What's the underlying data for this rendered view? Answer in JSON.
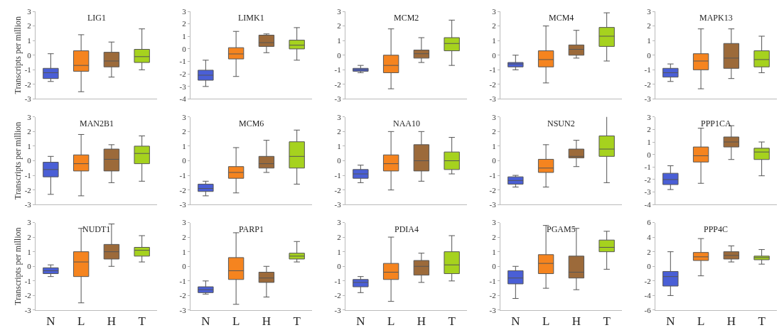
{
  "chart_data": [
    {
      "type": "box",
      "title": "LIG1",
      "ylabel": "Transcripts per million",
      "categories": [
        null,
        null,
        null,
        null
      ],
      "colors": [
        "#4a5fd6",
        "#f5841f",
        "#9c6a3a",
        "#a6d21e"
      ],
      "ylim": [
        -3,
        3
      ],
      "yticks": [
        -3,
        -2,
        -1,
        0,
        1,
        2,
        3
      ],
      "tick_labels": "y",
      "boxes": [
        {
          "low": -1.8,
          "q1": -1.6,
          "median": -1.2,
          "q3": -0.9,
          "high": 0.1
        },
        {
          "low": -2.5,
          "q1": -1.1,
          "median": -0.7,
          "q3": 0.3,
          "high": 1.4
        },
        {
          "low": -1.5,
          "q1": -0.8,
          "median": -0.4,
          "q3": 0.2,
          "high": 0.9
        },
        {
          "low": -1,
          "q1": -0.5,
          "median": -0.1,
          "q3": 0.4,
          "high": 1.8
        }
      ]
    },
    {
      "type": "box",
      "title": "LIMK1",
      "categories": [
        null,
        null,
        null,
        null
      ],
      "colors": [
        "#4a5fd6",
        "#f5841f",
        "#9c6a3a",
        "#a6d21e"
      ],
      "ylim": [
        -4,
        3
      ],
      "yticks": [
        -4,
        -3,
        -2,
        -1,
        0,
        1,
        2,
        3
      ],
      "tick_labels": "y",
      "boxes": [
        {
          "low": -3,
          "q1": -2.5,
          "median": -2.1,
          "q3": -1.7,
          "high": -0.9
        },
        {
          "low": -2.2,
          "q1": -0.8,
          "median": -0.4,
          "q3": 0.1,
          "high": 1.4
        },
        {
          "low": -0.3,
          "q1": 0.2,
          "median": 0.5,
          "q3": 1.1,
          "high": 1.2
        },
        {
          "low": -0.9,
          "q1": 0,
          "median": 0.3,
          "q3": 0.7,
          "high": 1.7
        }
      ]
    },
    {
      "type": "box",
      "title": "MCM2",
      "categories": [
        null,
        null,
        null,
        null
      ],
      "colors": [
        "#4a5fd6",
        "#f5841f",
        "#9c6a3a",
        "#a6d21e"
      ],
      "ylim": [
        -3,
        3
      ],
      "yticks": [
        -3,
        -2,
        -1,
        0,
        1,
        2,
        3
      ],
      "tick_labels": "y",
      "boxes": [
        {
          "low": -1.2,
          "q1": -1.1,
          "median": -1,
          "q3": -0.9,
          "high": -0.7
        },
        {
          "low": -2.3,
          "q1": -1.2,
          "median": -0.7,
          "q3": 0,
          "high": 1.8
        },
        {
          "low": -0.5,
          "q1": -0.2,
          "median": 0.1,
          "q3": 0.35,
          "high": 1.2
        },
        {
          "low": -0.7,
          "q1": 0.3,
          "median": 0.8,
          "q3": 1.2,
          "high": 2.4
        }
      ]
    },
    {
      "type": "box",
      "title": "MCM4",
      "categories": [
        null,
        null,
        null,
        null
      ],
      "colors": [
        "#4a5fd6",
        "#f5841f",
        "#9c6a3a",
        "#a6d21e"
      ],
      "ylim": [
        -3,
        3
      ],
      "yticks": [
        -3,
        -2,
        -1,
        0,
        1,
        2,
        3
      ],
      "tick_labels": "y",
      "boxes": [
        {
          "low": -1,
          "q1": -0.8,
          "median": -0.6,
          "q3": -0.5,
          "high": 0
        },
        {
          "low": -1.9,
          "q1": -0.8,
          "median": -0.3,
          "q3": 0.3,
          "high": 2
        },
        {
          "low": -0.2,
          "q1": 0,
          "median": 0.4,
          "q3": 0.7,
          "high": 1.7
        },
        {
          "low": -0.4,
          "q1": 0.6,
          "median": 1.3,
          "q3": 1.9,
          "high": 2.9
        }
      ]
    },
    {
      "type": "box",
      "title": "MAPK13",
      "categories": [
        null,
        null,
        null,
        null
      ],
      "colors": [
        "#4a5fd6",
        "#f5841f",
        "#9c6a3a",
        "#a6d21e"
      ],
      "ylim": [
        -3,
        3
      ],
      "yticks": [
        -3,
        -2,
        -1,
        0,
        1,
        2,
        3
      ],
      "tick_labels": "y",
      "boxes": [
        {
          "low": -1.8,
          "q1": -1.5,
          "median": -1.2,
          "q3": -0.9,
          "high": -0.6
        },
        {
          "low": -2.3,
          "q1": -1,
          "median": -0.4,
          "q3": 0.1,
          "high": 1.8
        },
        {
          "low": -1.6,
          "q1": -0.9,
          "median": -0.2,
          "q3": 0.8,
          "high": 1.8
        },
        {
          "low": -1.2,
          "q1": -0.8,
          "median": -0.3,
          "q3": 0.3,
          "high": 1.3
        }
      ]
    },
    {
      "type": "box",
      "title": "MAN2B1",
      "ylabel": "Transcripts per million",
      "categories": [
        null,
        null,
        null,
        null
      ],
      "colors": [
        "#4a5fd6",
        "#f5841f",
        "#9c6a3a",
        "#a6d21e"
      ],
      "ylim": [
        -3,
        3
      ],
      "yticks": [
        -3,
        -2,
        -1,
        0,
        1,
        2,
        3
      ],
      "tick_labels": "y",
      "boxes": [
        {
          "low": -2.3,
          "q1": -1.1,
          "median": -0.6,
          "q3": -0.1,
          "high": 0.3
        },
        {
          "low": -2.4,
          "q1": -0.7,
          "median": -0.2,
          "q3": 0.4,
          "high": 1.8
        },
        {
          "low": -1.5,
          "q1": -0.7,
          "median": 0.1,
          "q3": 0.8,
          "high": 1.1
        },
        {
          "low": -1.4,
          "q1": -0.2,
          "median": 0.5,
          "q3": 1,
          "high": 1.7
        }
      ]
    },
    {
      "type": "box",
      "title": "MCM6",
      "categories": [
        null,
        null,
        null,
        null
      ],
      "colors": [
        "#4a5fd6",
        "#f5841f",
        "#9c6a3a",
        "#a6d21e"
      ],
      "ylim": [
        -3,
        3
      ],
      "yticks": [
        -3,
        -2,
        -1,
        0,
        1,
        2,
        3
      ],
      "tick_labels": "y",
      "boxes": [
        {
          "low": -2.4,
          "q1": -2.1,
          "median": -1.9,
          "q3": -1.6,
          "high": -1.4
        },
        {
          "low": -2.2,
          "q1": -1.2,
          "median": -0.8,
          "q3": -0.4,
          "high": 0.9
        },
        {
          "low": -0.8,
          "q1": -0.5,
          "median": -0.2,
          "q3": 0.3,
          "high": 1.4
        },
        {
          "low": -1.6,
          "q1": -0.5,
          "median": 0.3,
          "q3": 1.3,
          "high": 2.1
        }
      ]
    },
    {
      "type": "box",
      "title": "NAA10",
      "categories": [
        null,
        null,
        null,
        null
      ],
      "colors": [
        "#4a5fd6",
        "#f5841f",
        "#9c6a3a",
        "#a6d21e"
      ],
      "ylim": [
        -3,
        3
      ],
      "yticks": [
        -3,
        -2,
        -1,
        0,
        1,
        2,
        3
      ],
      "tick_labels": "y",
      "boxes": [
        {
          "low": -1.5,
          "q1": -1.2,
          "median": -0.9,
          "q3": -0.6,
          "high": -0.3
        },
        {
          "low": -2,
          "q1": -0.7,
          "median": -0.2,
          "q3": 0.4,
          "high": 2
        },
        {
          "low": -1.4,
          "q1": -0.7,
          "median": 0,
          "q3": 1.1,
          "high": 2
        },
        {
          "low": -0.9,
          "q1": -0.6,
          "median": 0,
          "q3": 0.6,
          "high": 1.6
        }
      ]
    },
    {
      "type": "box",
      "title": "NSUN2",
      "categories": [
        null,
        null,
        null,
        null
      ],
      "colors": [
        "#4a5fd6",
        "#f5841f",
        "#9c6a3a",
        "#a6d21e"
      ],
      "ylim": [
        -3,
        3
      ],
      "yticks": [
        -3,
        -2,
        -1,
        0,
        1,
        2,
        3
      ],
      "tick_labels": "y",
      "boxes": [
        {
          "low": -1.8,
          "q1": -1.6,
          "median": -1.35,
          "q3": -1.1,
          "high": -1
        },
        {
          "low": -1.8,
          "q1": -0.8,
          "median": -0.5,
          "q3": 0.1,
          "high": 1.1
        },
        {
          "low": -0.4,
          "q1": 0.2,
          "median": 0.3,
          "q3": 0.8,
          "high": 1.4
        },
        {
          "low": -1.5,
          "q1": 0.3,
          "median": 0.8,
          "q3": 1.7,
          "high": 3.1
        }
      ]
    },
    {
      "type": "box",
      "title": "PPP1CA",
      "categories": [
        null,
        null,
        null,
        null
      ],
      "colors": [
        "#4a5fd6",
        "#f5841f",
        "#9c6a3a",
        "#a6d21e"
      ],
      "ylim": [
        -4,
        3
      ],
      "yticks": [
        -4,
        -3,
        -2,
        -1,
        0,
        1,
        2,
        3
      ],
      "tick_labels": "y",
      "boxes": [
        {
          "low": -2.8,
          "q1": -2.4,
          "median": -2,
          "q3": -1.5,
          "high": -0.9
        },
        {
          "low": -2.3,
          "q1": -0.6,
          "median": -0.1,
          "q3": 0.6,
          "high": 2.1
        },
        {
          "low": -0.4,
          "q1": 0.6,
          "median": 1,
          "q3": 1.4,
          "high": 2.3
        },
        {
          "low": -1.7,
          "q1": -0.4,
          "median": 0.2,
          "q3": 0.5,
          "high": 1
        }
      ]
    },
    {
      "type": "box",
      "title": "NUDT1",
      "ylabel": "Transcripts per million",
      "categories": [
        "N",
        "L",
        "H",
        "T"
      ],
      "colors": [
        "#4a5fd6",
        "#f5841f",
        "#9c6a3a",
        "#a6d21e"
      ],
      "ylim": [
        -3,
        3
      ],
      "yticks": [
        -3,
        -2,
        -1,
        0,
        1,
        2,
        3
      ],
      "boxes": [
        {
          "low": -0.7,
          "q1": -0.5,
          "median": -0.3,
          "q3": -0.1,
          "high": 0.1
        },
        {
          "low": -2.5,
          "q1": -0.7,
          "median": 0.3,
          "q3": 1,
          "high": 2.6
        },
        {
          "low": 0,
          "q1": 0.5,
          "median": 1,
          "q3": 1.5,
          "high": 2.9
        },
        {
          "low": 0.3,
          "q1": 0.7,
          "median": 1.1,
          "q3": 1.3,
          "high": 2.1
        }
      ]
    },
    {
      "type": "box",
      "title": "PARP1",
      "categories": [
        "N",
        "L",
        "H",
        "T"
      ],
      "colors": [
        "#4a5fd6",
        "#f5841f",
        "#9c6a3a",
        "#a6d21e"
      ],
      "ylim": [
        -3,
        3
      ],
      "yticks": [
        -3,
        -2,
        -1,
        0,
        1,
        2,
        3
      ],
      "boxes": [
        {
          "low": -1.9,
          "q1": -1.8,
          "median": -1.6,
          "q3": -1.4,
          "high": -1
        },
        {
          "low": -2.6,
          "q1": -0.9,
          "median": -0.3,
          "q3": 0.6,
          "high": 2.3
        },
        {
          "low": -2.1,
          "q1": -1.1,
          "median": -0.8,
          "q3": -0.4,
          "high": 0
        },
        {
          "low": 0.3,
          "q1": 0.5,
          "median": 0.7,
          "q3": 0.9,
          "high": 1.7
        }
      ]
    },
    {
      "type": "box",
      "title": "PDIA4",
      "categories": [
        "N",
        "L",
        "H",
        "T"
      ],
      "colors": [
        "#4a5fd6",
        "#f5841f",
        "#9c6a3a",
        "#a6d21e"
      ],
      "ylim": [
        -3,
        3
      ],
      "yticks": [
        -3,
        -2,
        -1,
        0,
        1,
        2,
        3
      ],
      "boxes": [
        {
          "low": -1.8,
          "q1": -1.4,
          "median": -1.1,
          "q3": -0.9,
          "high": -0.7
        },
        {
          "low": -2.4,
          "q1": -0.9,
          "median": -0.4,
          "q3": 0.2,
          "high": 2
        },
        {
          "low": -1.1,
          "q1": -0.6,
          "median": 0,
          "q3": 0.4,
          "high": 0.9
        },
        {
          "low": -1,
          "q1": -0.5,
          "median": 0.1,
          "q3": 1,
          "high": 2.1
        }
      ]
    },
    {
      "type": "box",
      "title": "PGAM5",
      "categories": [
        "N",
        "L",
        "H",
        "T"
      ],
      "colors": [
        "#4a5fd6",
        "#f5841f",
        "#9c6a3a",
        "#a6d21e"
      ],
      "ylim": [
        -3,
        3
      ],
      "yticks": [
        -3,
        -2,
        -1,
        0,
        1,
        2,
        3
      ],
      "boxes": [
        {
          "low": -2.2,
          "q1": -1.2,
          "median": -0.8,
          "q3": -0.3,
          "high": 0
        },
        {
          "low": -1.5,
          "q1": -0.5,
          "median": 0.2,
          "q3": 0.8,
          "high": 2.8
        },
        {
          "low": -1.6,
          "q1": -0.8,
          "median": -0.4,
          "q3": 0.7,
          "high": 2.6
        },
        {
          "low": -0.2,
          "q1": 1,
          "median": 1.3,
          "q3": 1.8,
          "high": 2.4
        }
      ]
    },
    {
      "type": "box",
      "title": "PPP4C",
      "categories": [
        "N",
        "L",
        "H",
        "T"
      ],
      "colors": [
        "#4a5fd6",
        "#f5841f",
        "#9c6a3a",
        "#a6d21e"
      ],
      "ylim": [
        -6,
        6
      ],
      "yticks": [
        -6,
        -4,
        -2,
        0,
        2,
        4,
        6
      ],
      "boxes": [
        {
          "low": -4,
          "q1": -2.7,
          "median": -1.4,
          "q3": -0.7,
          "high": 2
        },
        {
          "low": -1.3,
          "q1": 0.8,
          "median": 1.3,
          "q3": 1.9,
          "high": 3.8
        },
        {
          "low": 0.6,
          "q1": 1,
          "median": 1.5,
          "q3": 2,
          "high": 2.8
        },
        {
          "low": 0.3,
          "q1": 0.9,
          "median": 1.2,
          "q3": 1.4,
          "high": 2.3
        }
      ]
    }
  ]
}
